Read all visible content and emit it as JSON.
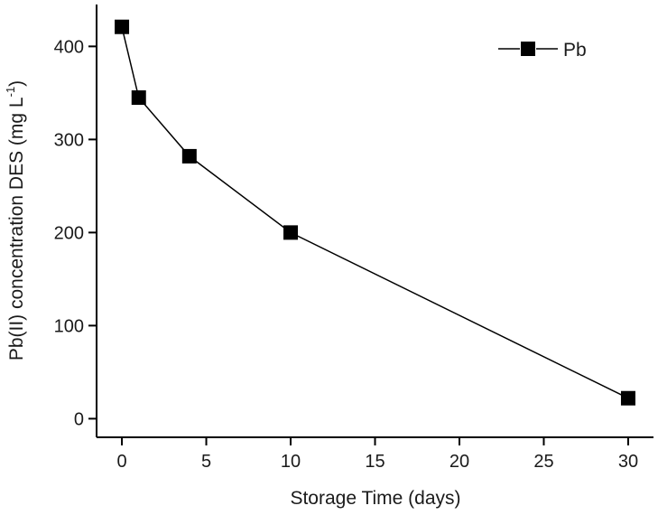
{
  "chart_data": {
    "type": "line",
    "xlabel": "Storage Time (days)",
    "ylabel": "Pb(II) concentration DES (mg L-1)",
    "ylabel_main": "Pb(II) concentration DES (mg L",
    "ylabel_sup": "-1",
    "ylabel_close": ")",
    "xlim": [
      -1.5,
      31.5
    ],
    "ylim": [
      -20,
      445
    ],
    "xticks": [
      0,
      5,
      10,
      15,
      20,
      25,
      30
    ],
    "xtick_labels": [
      "0",
      "5",
      "10",
      "15",
      "20",
      "25",
      "30"
    ],
    "yticks": [
      0,
      100,
      200,
      300,
      400
    ],
    "ytick_labels": [
      "0",
      "100",
      "200",
      "300",
      "400"
    ],
    "legend_position": "top-right",
    "grid": false,
    "series": [
      {
        "name": "Pb",
        "marker": "square",
        "color": "#000000",
        "x": [
          0,
          1,
          4,
          10,
          30
        ],
        "y": [
          421,
          345,
          282,
          200,
          22
        ]
      }
    ]
  }
}
